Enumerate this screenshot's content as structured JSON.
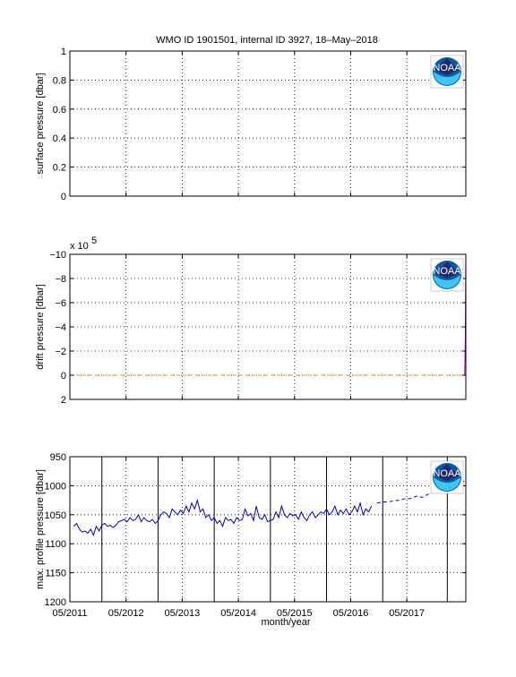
{
  "figure": {
    "title": "WMO ID 1901501, internal ID 3927, 18–May–2018"
  },
  "colors": {
    "axis": "#000000",
    "grid": "#000000",
    "drift_series": "#ccaa00",
    "drift_spike": "#aa00aa",
    "profile_series": "#0000cc",
    "noaa_blue": "#0a5aa8",
    "noaa_navy": "#1f2a6b",
    "noaa_sky": "#3ec6f0"
  },
  "logos": [
    {
      "text": "NOAA",
      "icon": "noaa-logo-icon"
    },
    {
      "text": "NOAA",
      "icon": "noaa-logo-icon"
    },
    {
      "text": "NOAA",
      "icon": "noaa-logo-icon"
    }
  ],
  "chart_data": [
    {
      "type": "line",
      "title": "WMO ID 1901501, internal ID 3927, 18–May–2018",
      "xlabel": "",
      "ylabel": "surface pressure [dbar]",
      "xlim": [
        2011.33,
        2018.38
      ],
      "ylim": [
        0,
        1
      ],
      "y_reversed": false,
      "yticks": [
        0,
        0.2,
        0.4,
        0.6,
        0.8,
        1
      ],
      "ytick_labels": [
        "0",
        "0.2",
        "0.4",
        "0.6",
        "0.8",
        "1"
      ],
      "xticks": [
        2011.33,
        2012.33,
        2013.33,
        2014.33,
        2015.33,
        2016.33,
        2017.33
      ],
      "xtick_labels": [],
      "grid": true,
      "series": []
    },
    {
      "type": "line",
      "title": "",
      "xlabel": "",
      "ylabel": "drift pressure [dbar]",
      "exponent_label": "x 10",
      "exponent_power": "5",
      "xlim": [
        2011.33,
        2018.38
      ],
      "ylim": [
        -10,
        2
      ],
      "y_reversed": true,
      "yticks": [
        -10,
        -8,
        -6,
        -4,
        -2,
        0,
        2
      ],
      "ytick_labels": [
        "−10",
        "−8",
        "−6",
        "−4",
        "−2",
        "0",
        "2"
      ],
      "xticks": [
        2011.33,
        2012.33,
        2013.33,
        2014.33,
        2015.33,
        2016.33,
        2017.33
      ],
      "xtick_labels": [],
      "grid": true,
      "series": [
        {
          "x": [
            2011.33,
            2018.36
          ],
          "y": [
            0,
            0
          ],
          "style": "dashed"
        },
        {
          "x": [
            2018.36,
            2018.37,
            2018.38
          ],
          "y": [
            0,
            -3,
            -10
          ],
          "style": "solid"
        }
      ]
    },
    {
      "type": "line",
      "title": "",
      "xlabel": "month/year",
      "ylabel": "max. profile pressure [dbar]",
      "xlim": [
        2011.33,
        2018.38
      ],
      "ylim": [
        950,
        1200
      ],
      "y_reversed": true,
      "yticks": [
        950,
        1000,
        1050,
        1100,
        1150,
        1200
      ],
      "ytick_labels": [
        "950",
        "1000",
        "1050",
        "1100",
        "1150",
        "1200"
      ],
      "xticks": [
        2011.33,
        2012.33,
        2013.33,
        2014.33,
        2015.33,
        2016.33,
        2017.33
      ],
      "xtick_labels": [
        "05/2011",
        "05/2012",
        "05/2013",
        "05/2014",
        "05/2015",
        "05/2016",
        "05/2017"
      ],
      "grid": true,
      "vertical_lines": [
        2011.9,
        2012.9,
        2013.9,
        2014.9,
        2015.9,
        2016.9,
        2018.05
      ],
      "series": [
        {
          "x": [
            2011.4,
            2011.45,
            2011.5,
            2011.55,
            2011.6,
            2011.65,
            2011.7,
            2011.75,
            2011.8,
            2011.85,
            2011.9,
            2011.95,
            2012.0,
            2012.05,
            2012.1,
            2012.15,
            2012.2,
            2012.25,
            2012.3,
            2012.35,
            2012.4,
            2012.45,
            2012.5,
            2012.55,
            2012.6,
            2012.65,
            2012.7,
            2012.75,
            2012.8,
            2012.85,
            2012.9,
            2012.95,
            2013.0,
            2013.05,
            2013.1,
            2013.15,
            2013.2,
            2013.25,
            2013.3,
            2013.35,
            2013.4,
            2013.45,
            2013.5,
            2013.55,
            2013.6,
            2013.65,
            2013.7,
            2013.75,
            2013.8,
            2013.85,
            2013.9,
            2013.95,
            2014.0,
            2014.05,
            2014.1,
            2014.15,
            2014.2,
            2014.25,
            2014.3,
            2014.35,
            2014.4,
            2014.45,
            2014.5,
            2014.55,
            2014.6,
            2014.65,
            2014.7,
            2014.75,
            2014.8,
            2014.85,
            2014.9,
            2014.95,
            2015.0,
            2015.05,
            2015.1,
            2015.15,
            2015.2,
            2015.25,
            2015.3,
            2015.35,
            2015.4,
            2015.45,
            2015.5,
            2015.55,
            2015.6,
            2015.65,
            2015.7,
            2015.75,
            2015.8,
            2015.85,
            2015.9,
            2015.95,
            2016.0,
            2016.05,
            2016.1,
            2016.15,
            2016.2,
            2016.25,
            2016.3,
            2016.35,
            2016.4,
            2016.45,
            2016.5,
            2016.55,
            2016.6,
            2016.65,
            2016.7
          ],
          "y": [
            1070,
            1065,
            1075,
            1080,
            1078,
            1082,
            1075,
            1085,
            1070,
            1078,
            1068,
            1065,
            1070,
            1068,
            1072,
            1068,
            1062,
            1060,
            1058,
            1062,
            1055,
            1060,
            1058,
            1050,
            1062,
            1055,
            1060,
            1062,
            1058,
            1065,
            1060,
            1050,
            1045,
            1048,
            1055,
            1040,
            1045,
            1050,
            1042,
            1048,
            1035,
            1045,
            1030,
            1040,
            1025,
            1045,
            1040,
            1055,
            1050,
            1060,
            1055,
            1065,
            1060,
            1070,
            1055,
            1060,
            1058,
            1065,
            1055,
            1060,
            1058,
            1040,
            1052,
            1048,
            1060,
            1035,
            1055,
            1058,
            1050,
            1062,
            1060,
            1058,
            1045,
            1055,
            1035,
            1050,
            1055,
            1048,
            1052,
            1050,
            1058,
            1045,
            1055,
            1060,
            1050,
            1045,
            1055,
            1050,
            1045,
            1048,
            1040,
            1050,
            1045,
            1035,
            1050,
            1042,
            1048,
            1040,
            1050,
            1045,
            1035,
            1045,
            1030,
            1050,
            1040,
            1045,
            1035
          ],
          "style": "solid"
        },
        {
          "x": [
            2016.8,
            2016.9,
            2017.0,
            2017.1,
            2017.2,
            2017.3,
            2017.4,
            2017.5,
            2017.6,
            2017.7,
            2017.8,
            2017.9,
            2018.0,
            2018.1,
            2018.2,
            2018.3,
            2018.38
          ],
          "y": [
            1030,
            1028,
            1028,
            1026,
            1025,
            1022,
            1022,
            1018,
            1020,
            1015,
            1012,
            1010,
            1008,
            1005,
            1000,
            995,
            990
          ],
          "style": "dashed"
        }
      ]
    }
  ]
}
